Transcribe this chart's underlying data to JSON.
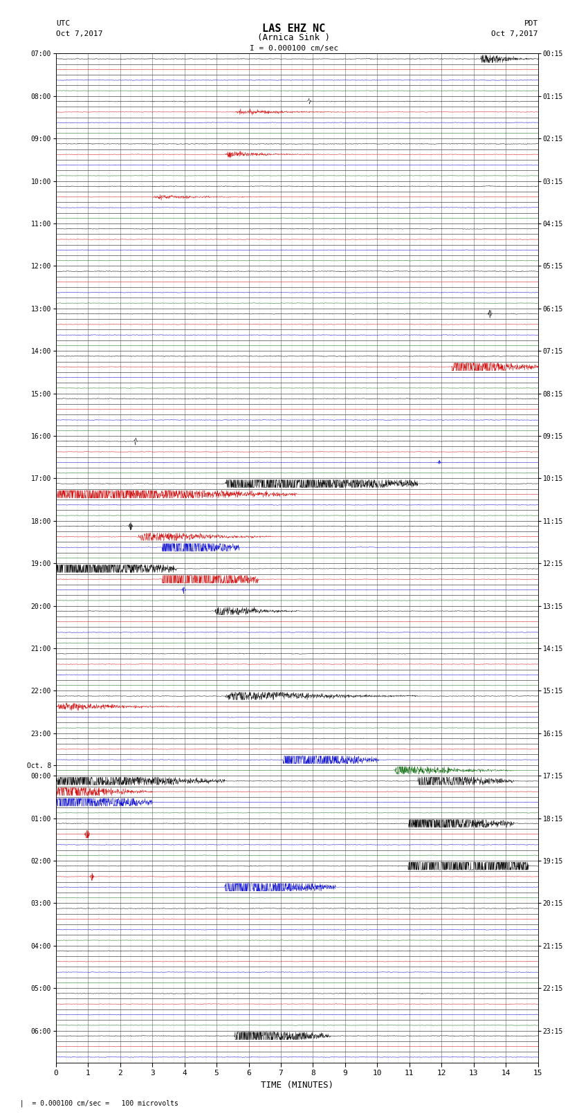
{
  "title_line1": "LAS EHZ NC",
  "title_line2": "(Arnica Sink )",
  "scale_text": "I = 0.000100 cm/sec",
  "xlabel": "TIME (MINUTES)",
  "bottom_note": "= 0.000100 cm/sec =   100 microvolts",
  "left_times": [
    "07:00",
    "",
    "",
    "",
    "08:00",
    "",
    "",
    "",
    "09:00",
    "",
    "",
    "",
    "10:00",
    "",
    "",
    "",
    "11:00",
    "",
    "",
    "",
    "12:00",
    "",
    "",
    "",
    "13:00",
    "",
    "",
    "",
    "14:00",
    "",
    "",
    "",
    "15:00",
    "",
    "",
    "",
    "16:00",
    "",
    "",
    "",
    "17:00",
    "",
    "",
    "",
    "18:00",
    "",
    "",
    "",
    "19:00",
    "",
    "",
    "",
    "20:00",
    "",
    "",
    "",
    "21:00",
    "",
    "",
    "",
    "22:00",
    "",
    "",
    "",
    "23:00",
    "",
    "",
    "Oct. 8",
    "00:00",
    "",
    "",
    "",
    "01:00",
    "",
    "",
    "",
    "02:00",
    "",
    "",
    "",
    "03:00",
    "",
    "",
    "",
    "04:00",
    "",
    "",
    "",
    "05:00",
    "",
    "",
    "",
    "06:00",
    "",
    ""
  ],
  "right_times": [
    "00:15",
    "",
    "",
    "",
    "01:15",
    "",
    "",
    "",
    "02:15",
    "",
    "",
    "",
    "03:15",
    "",
    "",
    "",
    "04:15",
    "",
    "",
    "",
    "05:15",
    "",
    "",
    "",
    "06:15",
    "",
    "",
    "",
    "07:15",
    "",
    "",
    "",
    "08:15",
    "",
    "",
    "",
    "09:15",
    "",
    "",
    "",
    "10:15",
    "",
    "",
    "",
    "11:15",
    "",
    "",
    "",
    "12:15",
    "",
    "",
    "",
    "13:15",
    "",
    "",
    "",
    "14:15",
    "",
    "",
    "",
    "15:15",
    "",
    "",
    "",
    "16:15",
    "",
    "",
    "",
    "17:15",
    "",
    "",
    "",
    "18:15",
    "",
    "",
    "",
    "19:15",
    "",
    "",
    "",
    "20:15",
    "",
    "",
    "",
    "21:15",
    "",
    "",
    "",
    "22:15",
    "",
    "",
    "",
    "23:15",
    "",
    ""
  ],
  "bg_color": "#ffffff",
  "fig_width": 8.5,
  "fig_height": 16.13,
  "colors_cycle": [
    "#000000",
    "#cc0000",
    "#0000cc",
    "#006400"
  ],
  "n_subrows": 4
}
